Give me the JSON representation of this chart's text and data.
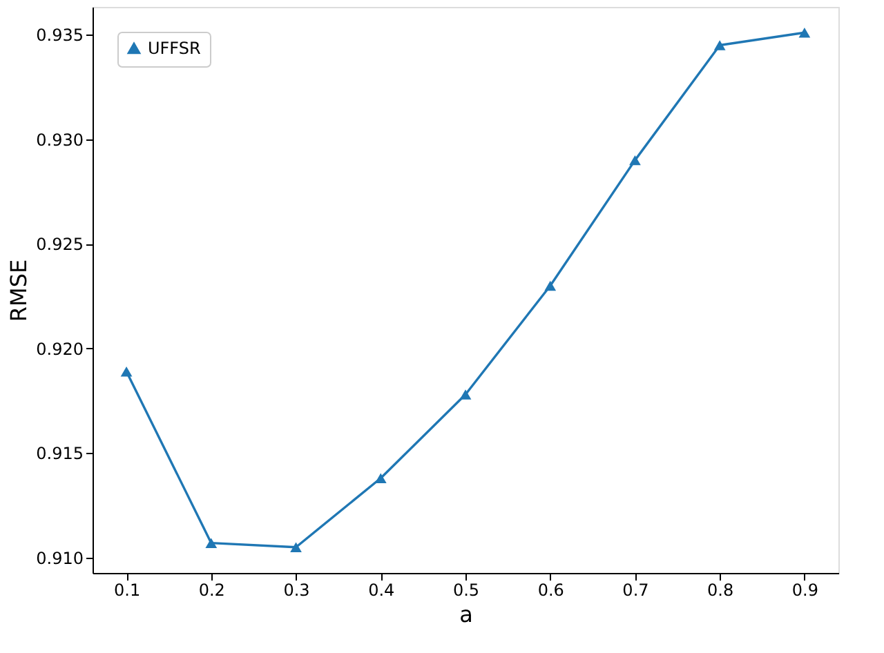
{
  "chart_data": {
    "type": "line",
    "xlabel": "a",
    "ylabel": "RMSE",
    "x": [
      0.1,
      0.2,
      0.3,
      0.4,
      0.5,
      0.6,
      0.7,
      0.8,
      0.9
    ],
    "series": [
      {
        "name": "UFFSR",
        "color": "#1f77b4",
        "values": [
          0.9189,
          0.9107,
          0.9105,
          0.9138,
          0.9178,
          0.923,
          0.929,
          0.9345,
          0.9351
        ]
      }
    ],
    "xlim": [
      0.06,
      0.94
    ],
    "xticks": [
      0.1,
      0.2,
      0.3,
      0.4,
      0.5,
      0.6,
      0.7,
      0.8,
      0.9
    ],
    "ylim": [
      0.90927,
      0.93633
    ],
    "yticks": [
      {
        "value": 0.91,
        "label": "0.910"
      },
      {
        "value": 0.915,
        "label": "0.915"
      },
      {
        "value": 0.92,
        "label": "0.920"
      },
      {
        "value": 0.925,
        "label": "0.925"
      },
      {
        "value": 0.93,
        "label": "0.930"
      },
      {
        "value": 0.935,
        "label": "0.935"
      }
    ],
    "marker": "triangle",
    "line_style": "solid",
    "legend": "top left",
    "grid": false
  }
}
